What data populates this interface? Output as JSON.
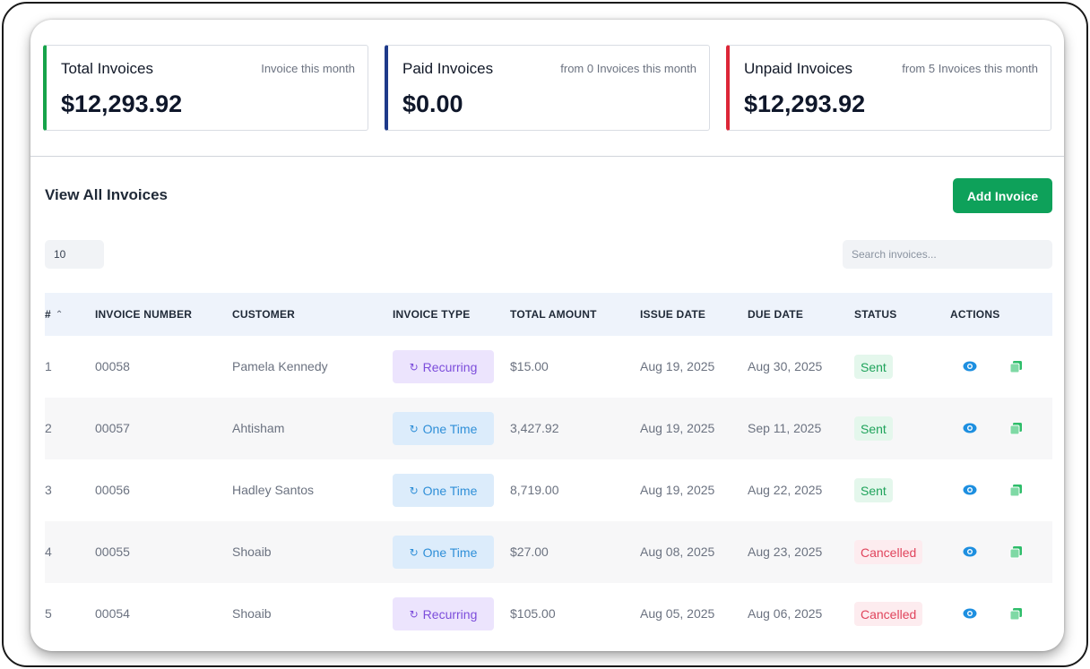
{
  "stats": [
    {
      "title": "Total Invoices",
      "subtitle": "Invoice this month",
      "value": "$12,293.92",
      "accent": "#16a34a"
    },
    {
      "title": "Paid Invoices",
      "subtitle": "from 0 Invoices this month",
      "value": "$0.00",
      "accent": "#1e3a8a"
    },
    {
      "title": "Unpaid Invoices",
      "subtitle": "from 5 Invoices this month",
      "value": "$12,293.92",
      "accent": "#dc2637"
    }
  ],
  "section": {
    "title": "View All Invoices",
    "add_label": "Add Invoice"
  },
  "controls": {
    "page_size": "10",
    "search_placeholder": "Search invoices..."
  },
  "table": {
    "headers": [
      "#",
      "INVOICE NUMBER",
      "CUSTOMER",
      "INVOICE TYPE",
      "TOTAL AMOUNT",
      "ISSUE DATE",
      "DUE DATE",
      "STATUS",
      "ACTIONS"
    ],
    "sort_icon": "chevron-up-icon",
    "rows": [
      {
        "index": "1",
        "number": "00058",
        "customer": "Pamela Kennedy",
        "type": "Recurring",
        "amount": "$15.00",
        "issue": "Aug 19, 2025",
        "due": "Aug 30, 2025",
        "status": "Sent"
      },
      {
        "index": "2",
        "number": "00057",
        "customer": "Ahtisham",
        "type": "One Time",
        "amount": "3,427.92",
        "issue": "Aug 19, 2025",
        "due": "Sep 11, 2025",
        "status": "Sent"
      },
      {
        "index": "3",
        "number": "00056",
        "customer": "Hadley Santos",
        "type": "One Time",
        "amount": "8,719.00",
        "issue": "Aug 19, 2025",
        "due": "Aug 22, 2025",
        "status": "Sent"
      },
      {
        "index": "4",
        "number": "00055",
        "customer": "Shoaib",
        "type": "One Time",
        "amount": "$27.00",
        "issue": "Aug 08, 2025",
        "due": "Aug 23, 2025",
        "status": "Cancelled"
      },
      {
        "index": "5",
        "number": "00054",
        "customer": "Shoaib",
        "type": "Recurring",
        "amount": "$105.00",
        "issue": "Aug 05, 2025",
        "due": "Aug 06, 2025",
        "status": "Cancelled"
      }
    ]
  },
  "icons": {
    "view": "eye-icon",
    "copy": "copy-icon",
    "type": "refresh-icon"
  },
  "colors": {
    "primary_button": "#0ea15a",
    "view_icon": "#1d8fe0",
    "copy_icon": "#2ebd6a"
  }
}
